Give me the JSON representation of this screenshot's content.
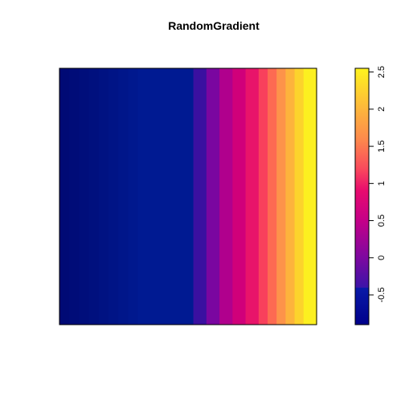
{
  "chart_data": [
    {
      "type": "heatmap",
      "title": "RandomGradient",
      "xlabel": "",
      "ylabel": "",
      "orientation": "values vary left-to-right; constant top-to-bottom",
      "band_values": [
        -0.9,
        -0.85,
        -0.8,
        -0.75,
        -0.7,
        -0.65,
        -0.6,
        -0.55,
        -0.5,
        -0.2,
        0.05,
        0.3,
        0.55,
        0.8,
        1.1,
        1.4,
        1.7,
        2.0,
        2.3,
        2.5
      ],
      "band_colors": [
        "#000a75",
        "#000c78",
        "#000e7b",
        "#00107e",
        "#001282",
        "#001486",
        "#00168a",
        "#00188e",
        "#001a92",
        "#3a10a0",
        "#7a06a0",
        "#b0008d",
        "#d0007a",
        "#e8146a",
        "#f8405c",
        "#fd6a52",
        "#fd934a",
        "#fdb33c",
        "#fcd32c",
        "#fcf020"
      ],
      "frame": true
    },
    {
      "type": "colorbar",
      "range": [
        -0.9,
        2.55
      ],
      "ticks": [
        "-0.5",
        "0",
        "0.5",
        "1",
        "1.5",
        "2",
        "2.5"
      ],
      "tick_values": [
        -0.5,
        0,
        0.5,
        1,
        1.5,
        2,
        2.5
      ],
      "side": "right",
      "stops": [
        {
          "v": -0.9,
          "color": "#00008b"
        },
        {
          "v": -0.4,
          "color": "#0a1aa8"
        },
        {
          "v": -0.4,
          "color": "#3c14a8"
        },
        {
          "v": 0.0,
          "color": "#7d08a0"
        },
        {
          "v": 0.5,
          "color": "#c40088"
        },
        {
          "v": 0.9,
          "color": "#e80b6e"
        },
        {
          "v": 1.2,
          "color": "#fa4a5c"
        },
        {
          "v": 1.6,
          "color": "#fd8a4c"
        },
        {
          "v": 2.0,
          "color": "#fdb63c"
        },
        {
          "v": 2.55,
          "color": "#fff41e"
        }
      ]
    }
  ]
}
